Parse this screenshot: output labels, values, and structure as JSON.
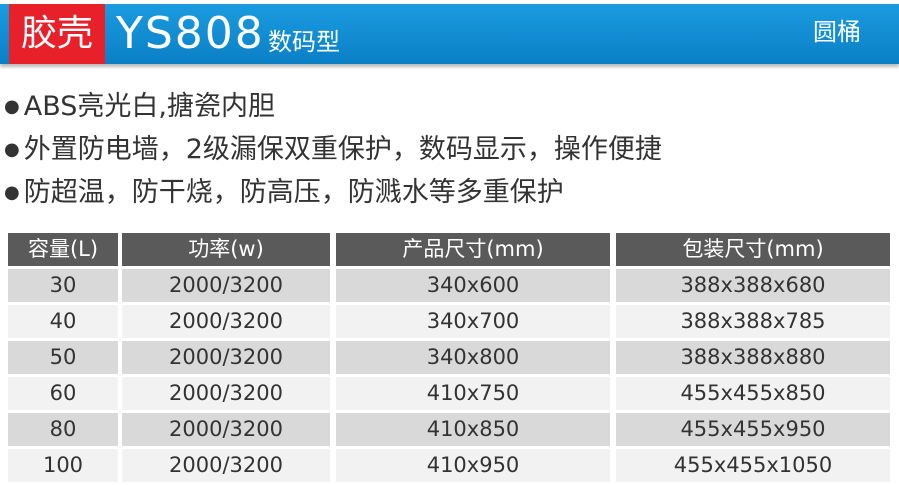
{
  "header": {
    "brand": "胶壳",
    "model": "YS808",
    "subtitle": "数码型",
    "shape": "圆桶"
  },
  "bullets": [
    "ABS亮光白,搪瓷内胆",
    "外置防电墙，2级漏保双重保护，数码显示，操作便捷",
    "防超温，防干烧，防高压，防溅水等多重保护"
  ],
  "table": {
    "columns": [
      "容量(L)",
      "功率(w)",
      "产品尺寸(mm)",
      "包装尺寸(mm)"
    ],
    "rows": [
      [
        "30",
        "2000/3200",
        "340x600",
        "388x388x680"
      ],
      [
        "40",
        "2000/3200",
        "340x700",
        "388x388x785"
      ],
      [
        "50",
        "2000/3200",
        "340x800",
        "388x388x880"
      ],
      [
        "60",
        "2000/3200",
        "410x750",
        "455x455x850"
      ],
      [
        "80",
        "2000/3200",
        "410x850",
        "455x455x950"
      ],
      [
        "100",
        "2000/3200",
        "410x950",
        "455x455x1050"
      ]
    ]
  }
}
